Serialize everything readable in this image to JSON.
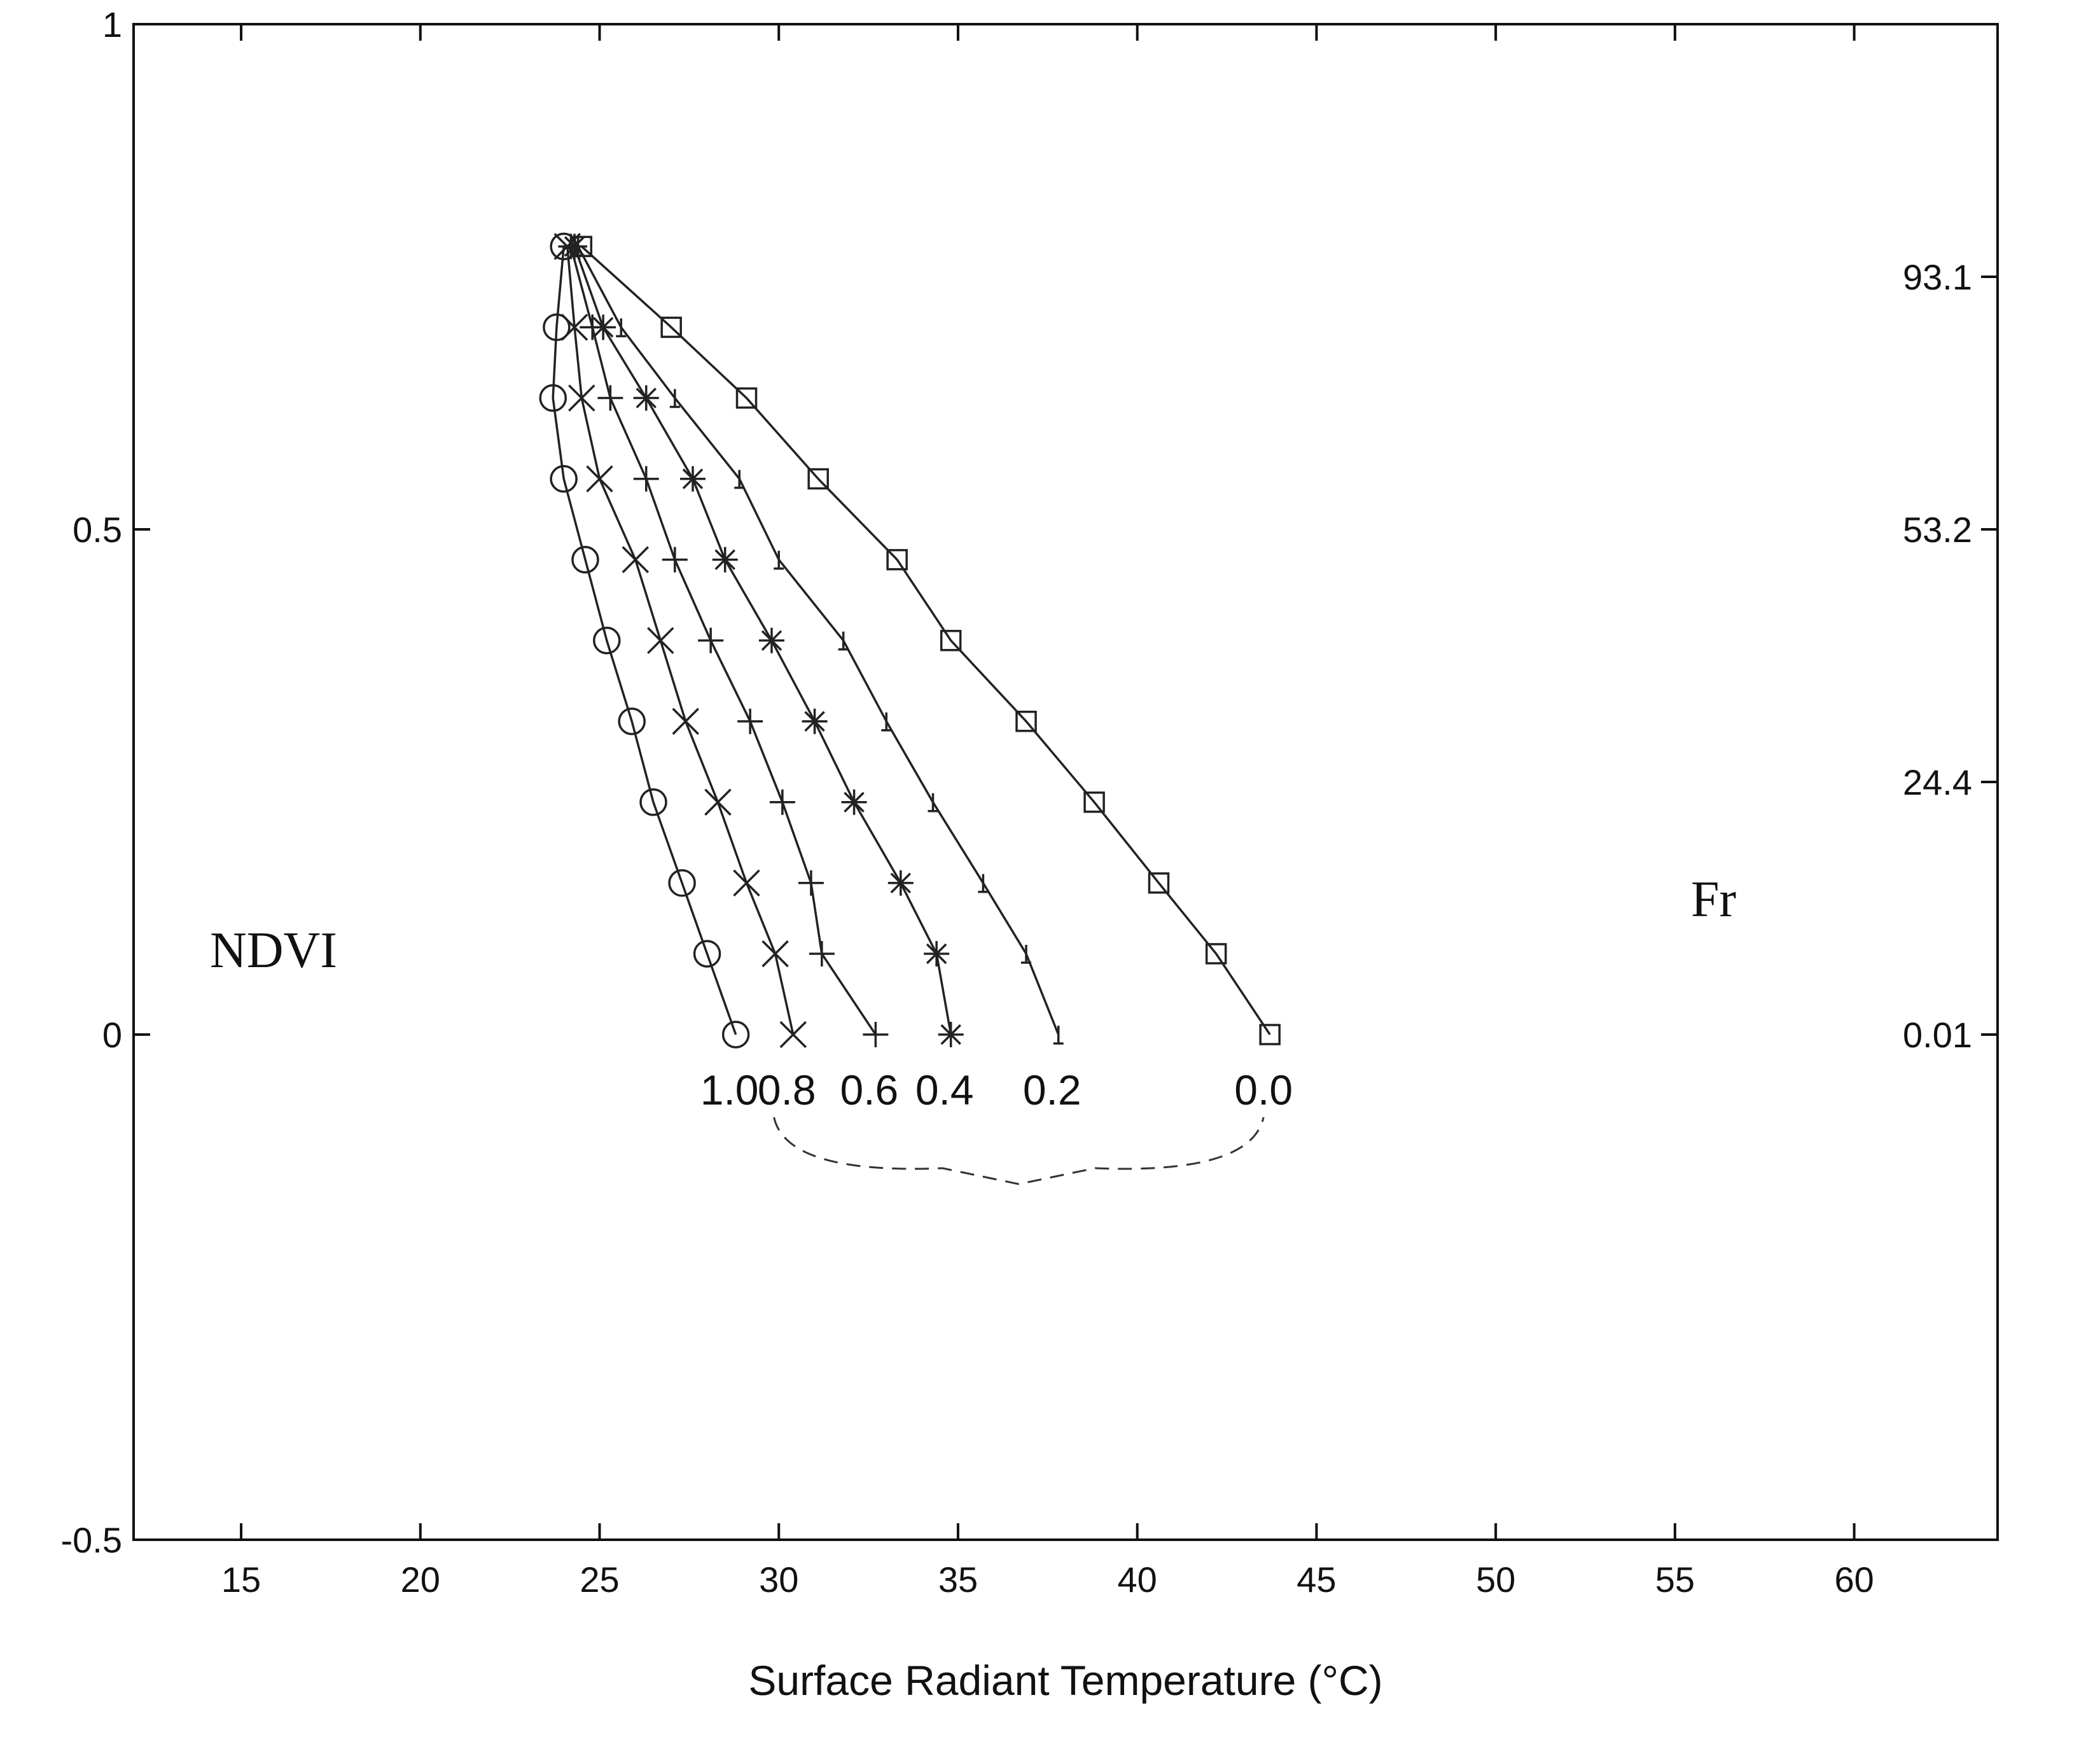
{
  "chart_data": {
    "type": "line",
    "xlabel": "Surface Radiant Temperature (°C)",
    "ylabel": "NDVI",
    "right_axis_label": "Fr",
    "xlim": [
      12,
      64
    ],
    "ylim": [
      -0.5,
      1
    ],
    "x_ticks": [
      "15",
      "20",
      "25",
      "30",
      "35",
      "40",
      "45",
      "50",
      "55",
      "60"
    ],
    "y_ticks": [
      "-0.5",
      "0",
      "0.5",
      "1"
    ],
    "right_ticks": [
      {
        "label": "93.1",
        "ndvi": 0.75
      },
      {
        "label": "53.2",
        "ndvi": 0.5
      },
      {
        "label": "24.4",
        "ndvi": 0.25
      },
      {
        "label": "0.01",
        "ndvi": 0
      }
    ],
    "grid": false,
    "series": [
      {
        "name": "1.0",
        "marker": "circle",
        "points": [
          [
            24.0,
            0.78
          ],
          [
            23.8,
            0.7
          ],
          [
            23.7,
            0.63
          ],
          [
            24.0,
            0.55
          ],
          [
            24.6,
            0.47
          ],
          [
            25.2,
            0.39
          ],
          [
            25.9,
            0.31
          ],
          [
            26.5,
            0.23
          ],
          [
            27.3,
            0.15
          ],
          [
            28.0,
            0.08
          ],
          [
            28.8,
            0.0
          ]
        ]
      },
      {
        "name": "0.8",
        "marker": "x",
        "points": [
          [
            24.1,
            0.78
          ],
          [
            24.3,
            0.7
          ],
          [
            24.5,
            0.63
          ],
          [
            25.0,
            0.55
          ],
          [
            26.0,
            0.47
          ],
          [
            26.7,
            0.39
          ],
          [
            27.4,
            0.31
          ],
          [
            28.3,
            0.23
          ],
          [
            29.1,
            0.15
          ],
          [
            29.9,
            0.08
          ],
          [
            30.4,
            0.0
          ]
        ]
      },
      {
        "name": "0.6",
        "marker": "plus",
        "points": [
          [
            24.2,
            0.78
          ],
          [
            24.8,
            0.7
          ],
          [
            25.3,
            0.63
          ],
          [
            26.3,
            0.55
          ],
          [
            27.1,
            0.47
          ],
          [
            28.1,
            0.39
          ],
          [
            29.2,
            0.31
          ],
          [
            30.1,
            0.23
          ],
          [
            30.9,
            0.15
          ],
          [
            31.2,
            0.08
          ],
          [
            32.7,
            0.0
          ]
        ]
      },
      {
        "name": "0.4",
        "marker": "asterisk",
        "points": [
          [
            24.3,
            0.78
          ],
          [
            25.1,
            0.7
          ],
          [
            26.3,
            0.63
          ],
          [
            27.6,
            0.55
          ],
          [
            28.5,
            0.47
          ],
          [
            29.8,
            0.39
          ],
          [
            31.0,
            0.31
          ],
          [
            32.1,
            0.23
          ],
          [
            33.4,
            0.15
          ],
          [
            34.4,
            0.08
          ],
          [
            34.8,
            0.0
          ]
        ]
      },
      {
        "name": "0.2",
        "marker": "dot",
        "points": [
          [
            24.4,
            0.78
          ],
          [
            25.6,
            0.7
          ],
          [
            27.1,
            0.63
          ],
          [
            28.9,
            0.55
          ],
          [
            30.0,
            0.47
          ],
          [
            31.8,
            0.39
          ],
          [
            33.0,
            0.31
          ],
          [
            34.3,
            0.23
          ],
          [
            35.7,
            0.15
          ],
          [
            36.9,
            0.08
          ],
          [
            37.8,
            0.0
          ]
        ]
      },
      {
        "name": "0.0",
        "marker": "square",
        "points": [
          [
            24.5,
            0.78
          ],
          [
            27.0,
            0.7
          ],
          [
            29.1,
            0.63
          ],
          [
            31.1,
            0.55
          ],
          [
            33.3,
            0.47
          ],
          [
            34.8,
            0.39
          ],
          [
            36.9,
            0.31
          ],
          [
            38.8,
            0.23
          ],
          [
            40.6,
            0.15
          ],
          [
            42.2,
            0.08
          ],
          [
            43.7,
            0.0
          ]
        ]
      }
    ]
  }
}
